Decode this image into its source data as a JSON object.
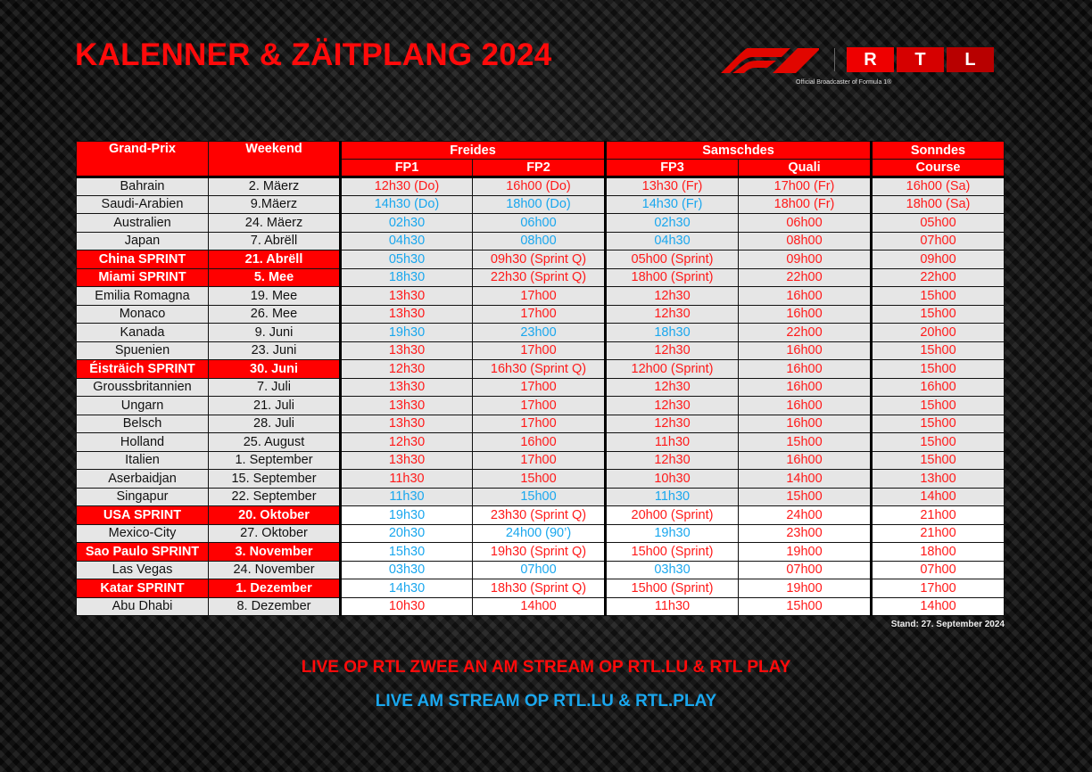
{
  "title": "KALENNER & ZÄITPLANG 2024",
  "logo": {
    "f1": "F1",
    "rtl_letters": [
      "R",
      "T",
      "L"
    ],
    "broadcaster": "Official Broadcaster of Formula 1®"
  },
  "colors": {
    "red": "#ff0000",
    "blue": "#1aa7ee",
    "row_bg": "#e6e6e6"
  },
  "table": {
    "headers": {
      "grand_prix": "Grand-Prix",
      "weekend": "Weekend",
      "freides": "Freides",
      "samschdes": "Samschdes",
      "sonndes": "Sonndes",
      "fp1": "FP1",
      "fp2": "FP2",
      "fp3": "FP3",
      "quali": "Quali",
      "course": "Course"
    },
    "rows": [
      {
        "gp": "Bahrain",
        "date": "2. Mäerz",
        "sprint": false,
        "times": [
          "12h30 (Do)",
          "16h00 (Do)",
          "13h30 (Fr)",
          "17h00 (Fr)",
          "16h00 (Sa)"
        ],
        "blue": []
      },
      {
        "gp": "Saudi-Arabien",
        "date": "9.Mäerz",
        "sprint": false,
        "times": [
          "14h30 (Do)",
          "18h00 (Do)",
          "14h30 (Fr)",
          "18h00 (Fr)",
          "18h00 (Sa)"
        ],
        "blue": [
          0,
          1,
          2
        ]
      },
      {
        "gp": "Australien",
        "date": "24. Mäerz",
        "sprint": false,
        "times": [
          "02h30",
          "06h00",
          "02h30",
          "06h00",
          "05h00"
        ],
        "blue": [
          0,
          1,
          2
        ]
      },
      {
        "gp": "Japan",
        "date": "7. Abrëll",
        "sprint": false,
        "times": [
          "04h30",
          "08h00",
          "04h30",
          "08h00",
          "07h00"
        ],
        "blue": [
          0,
          1,
          2
        ]
      },
      {
        "gp": "China SPRINT",
        "date": "21. Abrëll",
        "sprint": true,
        "times": [
          "05h30",
          "09h30 (Sprint Q)",
          "05h00 (Sprint)",
          "09h00",
          "09h00"
        ],
        "blue": [
          0
        ]
      },
      {
        "gp": "Miami SPRINT",
        "date": "5. Mee",
        "sprint": true,
        "times": [
          "18h30",
          "22h30 (Sprint Q)",
          "18h00 (Sprint)",
          "22h00",
          "22h00"
        ],
        "blue": [
          0
        ]
      },
      {
        "gp": "Emilia Romagna",
        "date": "19. Mee",
        "sprint": false,
        "times": [
          "13h30",
          "17h00",
          "12h30",
          "16h00",
          "15h00"
        ],
        "blue": []
      },
      {
        "gp": "Monaco",
        "date": "26. Mee",
        "sprint": false,
        "times": [
          "13h30",
          "17h00",
          "12h30",
          "16h00",
          "15h00"
        ],
        "blue": []
      },
      {
        "gp": "Kanada",
        "date": "9. Juni",
        "sprint": false,
        "times": [
          "19h30",
          "23h00",
          "18h30",
          "22h00",
          "20h00"
        ],
        "blue": [
          0,
          1,
          2
        ]
      },
      {
        "gp": "Spuenien",
        "date": "23. Juni",
        "sprint": false,
        "times": [
          "13h30",
          "17h00",
          "12h30",
          "16h00",
          "15h00"
        ],
        "blue": []
      },
      {
        "gp": "Éisträich SPRINT",
        "date": "30. Juni",
        "sprint": true,
        "times": [
          "12h30",
          "16h30 (Sprint Q)",
          "12h00 (Sprint)",
          "16h00",
          "15h00"
        ],
        "blue": []
      },
      {
        "gp": "Groussbritannien",
        "date": "7. Juli",
        "sprint": false,
        "times": [
          "13h30",
          "17h00",
          "12h30",
          "16h00",
          "16h00"
        ],
        "blue": []
      },
      {
        "gp": "Ungarn",
        "date": "21. Juli",
        "sprint": false,
        "times": [
          "13h30",
          "17h00",
          "12h30",
          "16h00",
          "15h00"
        ],
        "blue": []
      },
      {
        "gp": "Belsch",
        "date": "28. Juli",
        "sprint": false,
        "times": [
          "13h30",
          "17h00",
          "12h30",
          "16h00",
          "15h00"
        ],
        "blue": []
      },
      {
        "gp": "Holland",
        "date": "25. August",
        "sprint": false,
        "times": [
          "12h30",
          "16h00",
          "11h30",
          "15h00",
          "15h00"
        ],
        "blue": []
      },
      {
        "gp": "Italien",
        "date": "1. September",
        "sprint": false,
        "times": [
          "13h30",
          "17h00",
          "12h30",
          "16h00",
          "15h00"
        ],
        "blue": []
      },
      {
        "gp": "Aserbaidjan",
        "date": "15. September",
        "sprint": false,
        "times": [
          "11h30",
          "15h00",
          "10h30",
          "14h00",
          "13h00"
        ],
        "blue": []
      },
      {
        "gp": "Singapur",
        "date": "22. September",
        "sprint": false,
        "times": [
          "11h30",
          "15h00",
          "11h30",
          "15h00",
          "14h00"
        ],
        "blue": [
          0,
          1,
          2
        ]
      },
      {
        "gp": "USA SPRINT",
        "date": "20. Oktober",
        "sprint": true,
        "white": true,
        "times": [
          "19h30",
          "23h30 (Sprint Q)",
          "20h00 (Sprint)",
          "24h00",
          "21h00"
        ],
        "blue": [
          0
        ]
      },
      {
        "gp": "Mexico-City",
        "date": "27. Oktober",
        "sprint": false,
        "white": true,
        "times": [
          "20h30",
          "24h00 (90’)",
          "19h30",
          "23h00",
          "21h00"
        ],
        "blue": [
          0,
          1,
          2
        ]
      },
      {
        "gp": "Sao Paulo SPRINT",
        "date": "3. November",
        "sprint": true,
        "white": true,
        "times": [
          "15h30",
          "19h30 (Sprint Q)",
          "15h00 (Sprint)",
          "19h00",
          "18h00"
        ],
        "blue": [
          0
        ]
      },
      {
        "gp": "Las Vegas",
        "date": "24. November",
        "sprint": false,
        "white": true,
        "times": [
          "03h30",
          "07h00",
          "03h30",
          "07h00",
          "07h00"
        ],
        "blue": [
          0,
          1,
          2
        ]
      },
      {
        "gp": "Katar SPRINT",
        "date": "1. Dezember",
        "sprint": true,
        "white": true,
        "times": [
          "14h30",
          "18h30 (Sprint Q)",
          "15h00 (Sprint)",
          "19h00",
          "17h00"
        ],
        "blue": [
          0
        ]
      },
      {
        "gp": "Abu Dhabi",
        "date": "8. Dezember",
        "sprint": false,
        "white": true,
        "times": [
          "10h30",
          "14h00",
          "11h30",
          "15h00",
          "14h00"
        ],
        "blue": []
      }
    ]
  },
  "stand": "Stand: 27. September 2024",
  "footer": {
    "live_tv": "LIVE OP RTL ZWEE AN AM STREAM OP RTL.LU & RTL PLAY",
    "live_stream": "LIVE AM STREAM OP RTL.LU & RTL.PLAY"
  }
}
